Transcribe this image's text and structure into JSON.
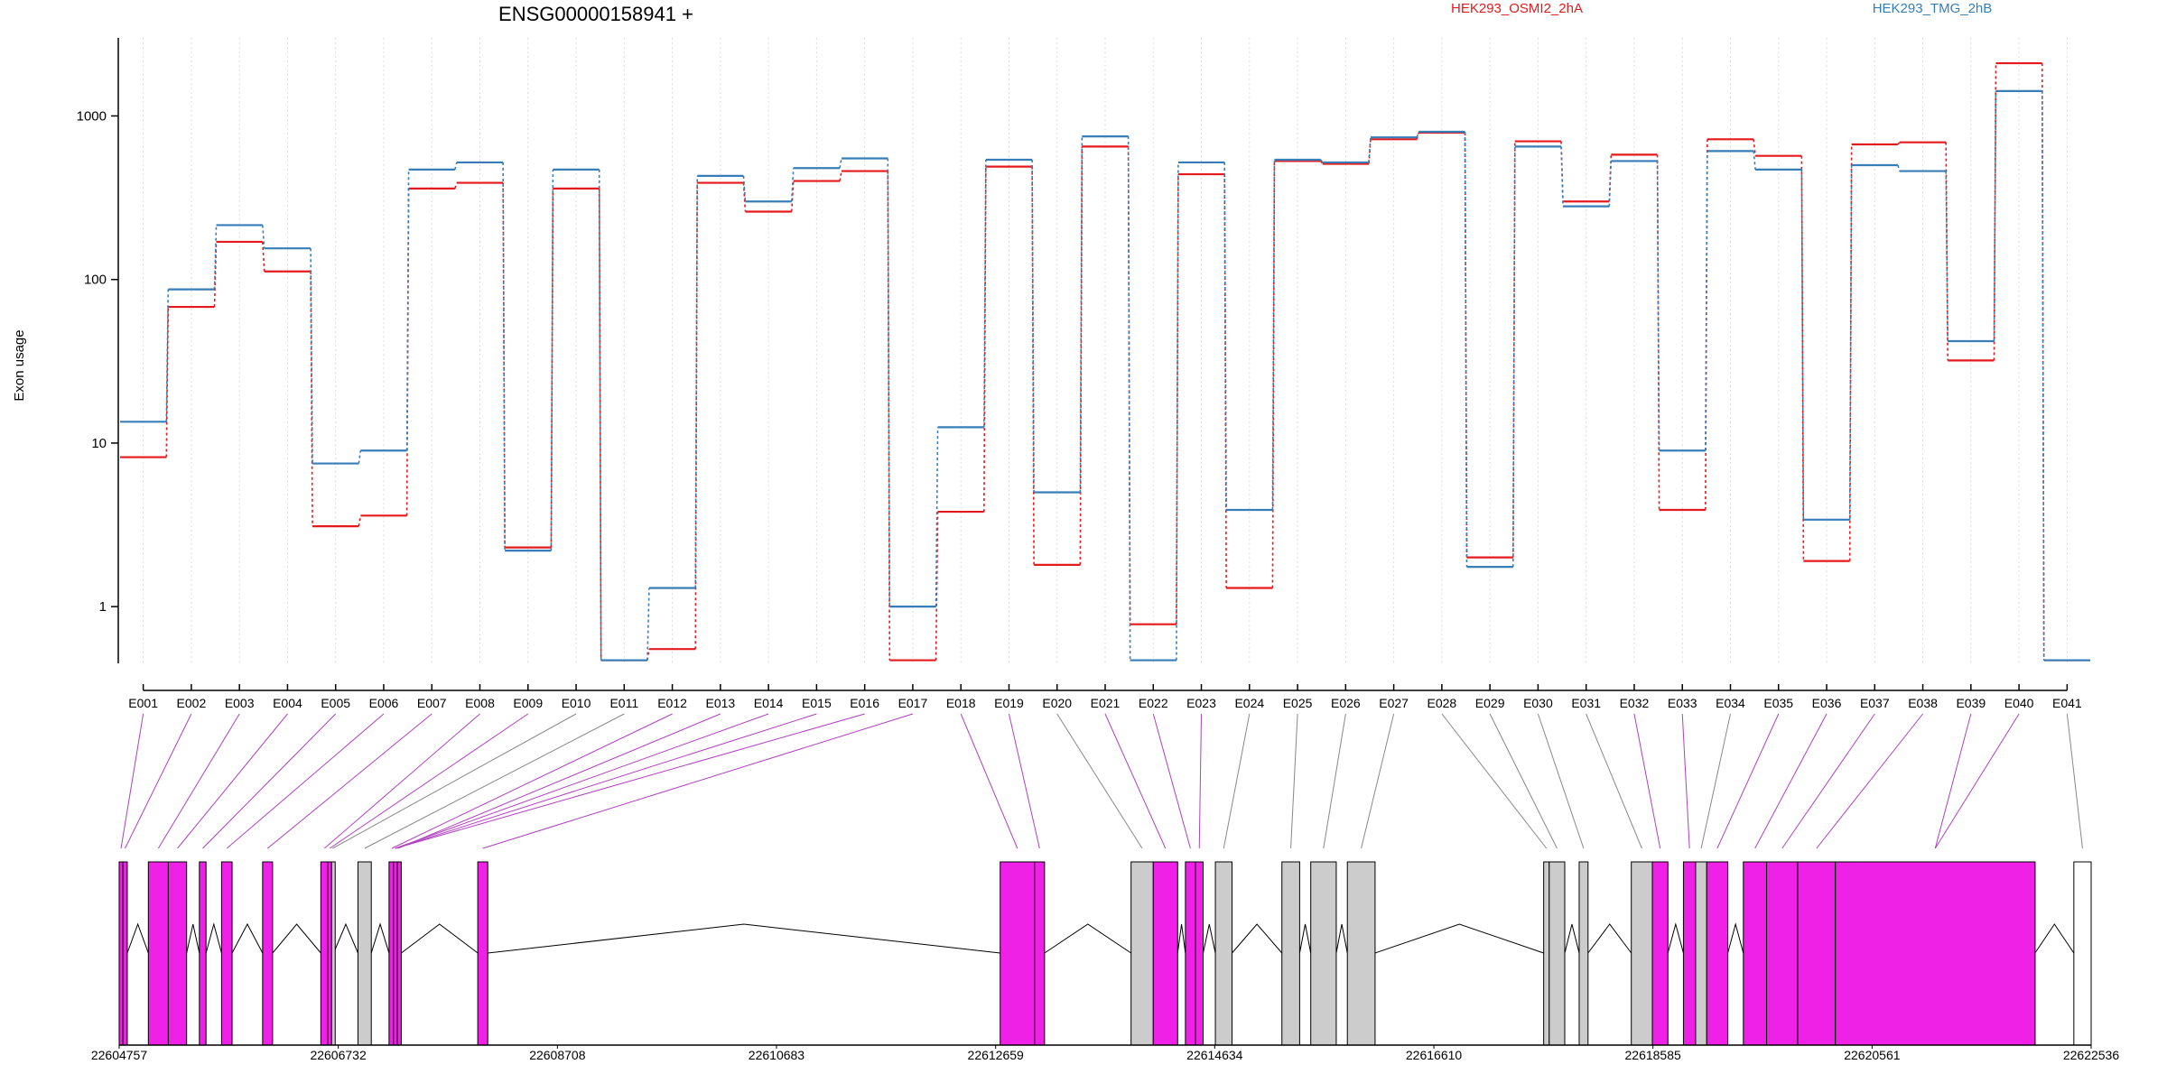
{
  "chart_data": {
    "type": "line",
    "title": "ENSG00000158941 +",
    "ylabel": "Exon usage",
    "yscale": "log",
    "ylim": [
      0.45,
      3000
    ],
    "y_ticks": [
      1,
      10,
      100,
      1000
    ],
    "y_tick_labels": [
      "1",
      "10",
      "100",
      "1000"
    ],
    "grid": "vertical dotted",
    "legend_placement": "top",
    "categories": [
      "E001",
      "E002",
      "E003",
      "E004",
      "E005",
      "E006",
      "E007",
      "E008",
      "E009",
      "E010",
      "E011",
      "E012",
      "E013",
      "E014",
      "E015",
      "E016",
      "E017",
      "E018",
      "E019",
      "E020",
      "E021",
      "E022",
      "E023",
      "E024",
      "E025",
      "E026",
      "E027",
      "E028",
      "E029",
      "E030",
      "E031",
      "E032",
      "E033",
      "E034",
      "E035",
      "E036",
      "E037",
      "E038",
      "E039",
      "E040",
      "E041"
    ],
    "series": [
      {
        "name": "HEK293_OSMI2_2hA",
        "color": "#e41a1c",
        "values": [
          8.2,
          68,
          170,
          112,
          3.1,
          3.6,
          360,
          390,
          2.3,
          360,
          0.47,
          0.55,
          390,
          260,
          400,
          460,
          0.47,
          3.8,
          490,
          1.8,
          650,
          0.78,
          440,
          1.3,
          530,
          510,
          720,
          790,
          2.0,
          700,
          300,
          580,
          3.9,
          720,
          570,
          1.9,
          670,
          690,
          32,
          2100,
          0.47
        ]
      },
      {
        "name": "HEK293_TMG_2hB",
        "color": "#377eb8",
        "values": [
          13.5,
          87,
          215,
          155,
          7.5,
          9.0,
          470,
          520,
          2.2,
          470,
          0.47,
          1.3,
          430,
          300,
          480,
          550,
          1.0,
          12.5,
          540,
          5.0,
          750,
          0.47,
          520,
          3.9,
          540,
          520,
          740,
          800,
          1.75,
          650,
          280,
          530,
          9.0,
          610,
          470,
          3.4,
          500,
          460,
          42,
          1420,
          0.47
        ]
      }
    ],
    "gene_model": {
      "coordinate_ticks": [
        "22604757",
        "22606732",
        "22608708",
        "22610683",
        "22612659",
        "22614634",
        "22616610",
        "22618585",
        "22620561",
        "22622536"
      ],
      "coord_min": 22604757,
      "coord_max": 22622536,
      "exons": [
        {
          "id": "E001",
          "start": 22604757,
          "end": 22604790,
          "color": "#f021e6"
        },
        {
          "id": "E002",
          "start": 22604790,
          "end": 22604830,
          "color": "#f021e6"
        },
        {
          "id": "E003",
          "start": 22605020,
          "end": 22605200,
          "color": "#f021e6"
        },
        {
          "id": "E004",
          "start": 22605200,
          "end": 22605365,
          "color": "#f021e6"
        },
        {
          "id": "E005",
          "start": 22605480,
          "end": 22605540,
          "color": "#f021e6"
        },
        {
          "id": "E006",
          "start": 22605680,
          "end": 22605775,
          "color": "#f021e6"
        },
        {
          "id": "E007",
          "start": 22606050,
          "end": 22606140,
          "color": "#f021e6"
        },
        {
          "id": "E008",
          "start": 22606575,
          "end": 22606640,
          "color": "#f021e6"
        },
        {
          "id": "E009",
          "start": 22606640,
          "end": 22606672,
          "color": "#f021e6"
        },
        {
          "id": "E010",
          "start": 22606672,
          "end": 22606690,
          "color": "#cccccc"
        },
        {
          "id": "E011",
          "start": 22606910,
          "end": 22607030,
          "color": "#cccccc"
        },
        {
          "id": "E012",
          "start": 22607190,
          "end": 22607240,
          "color": "#f021e6"
        },
        {
          "id": "E013",
          "start": 22607240,
          "end": 22607300,
          "color": "#f021e6"
        },
        {
          "id": "E014",
          "start": 22607230,
          "end": 22607260,
          "color": "#f021e6"
        },
        {
          "id": "E015",
          "start": 22607230,
          "end": 22607260,
          "color": "#f021e6"
        },
        {
          "id": "E016",
          "start": 22607230,
          "end": 22607260,
          "color": "#f021e6"
        },
        {
          "id": "E017",
          "start": 22607990,
          "end": 22608080,
          "color": "#f021e6"
        },
        {
          "id": "E018",
          "start": 22612700,
          "end": 22613010,
          "color": "#f021e6"
        },
        {
          "id": "E019",
          "start": 22613010,
          "end": 22613100,
          "color": "#f021e6"
        },
        {
          "id": "E020",
          "start": 22613880,
          "end": 22614080,
          "color": "#cccccc"
        },
        {
          "id": "E021",
          "start": 22614080,
          "end": 22614300,
          "color": "#f021e6"
        },
        {
          "id": "E022",
          "start": 22614370,
          "end": 22614460,
          "color": "#f021e6"
        },
        {
          "id": "E023",
          "start": 22614460,
          "end": 22614530,
          "color": "#f021e6"
        },
        {
          "id": "E024",
          "start": 22614640,
          "end": 22614790,
          "color": "#cccccc"
        },
        {
          "id": "E025",
          "start": 22615240,
          "end": 22615400,
          "color": "#cccccc"
        },
        {
          "id": "E026",
          "start": 22615500,
          "end": 22615730,
          "color": "#cccccc"
        },
        {
          "id": "E027",
          "start": 22615830,
          "end": 22616080,
          "color": "#cccccc"
        },
        {
          "id": "E028",
          "start": 22617600,
          "end": 22617650,
          "color": "#cccccc"
        },
        {
          "id": "E029",
          "start": 22617650,
          "end": 22617790,
          "color": "#cccccc"
        },
        {
          "id": "E030",
          "start": 22617920,
          "end": 22618000,
          "color": "#cccccc"
        },
        {
          "id": "E031",
          "start": 22618390,
          "end": 22618580,
          "color": "#cccccc"
        },
        {
          "id": "E032",
          "start": 22618580,
          "end": 22618720,
          "color": "#f021e6"
        },
        {
          "id": "E033",
          "start": 22618860,
          "end": 22618970,
          "color": "#f021e6"
        },
        {
          "id": "E034",
          "start": 22618970,
          "end": 22619070,
          "color": "#cccccc"
        },
        {
          "id": "E035",
          "start": 22619070,
          "end": 22619260,
          "color": "#f021e6"
        },
        {
          "id": "E036",
          "start": 22619400,
          "end": 22619610,
          "color": "#f021e6"
        },
        {
          "id": "E037",
          "start": 22619610,
          "end": 22619890,
          "color": "#f021e6"
        },
        {
          "id": "E038",
          "start": 22619890,
          "end": 22620230,
          "color": "#f021e6"
        },
        {
          "id": "E039",
          "start": 22620230,
          "end": 22622030,
          "color": "#f021e6"
        },
        {
          "id": "E040",
          "start": 22620230,
          "end": 22622030,
          "color": "#f021e6"
        },
        {
          "id": "E041",
          "start": 22622380,
          "end": 22622536,
          "color": "#ffffff"
        }
      ]
    }
  }
}
